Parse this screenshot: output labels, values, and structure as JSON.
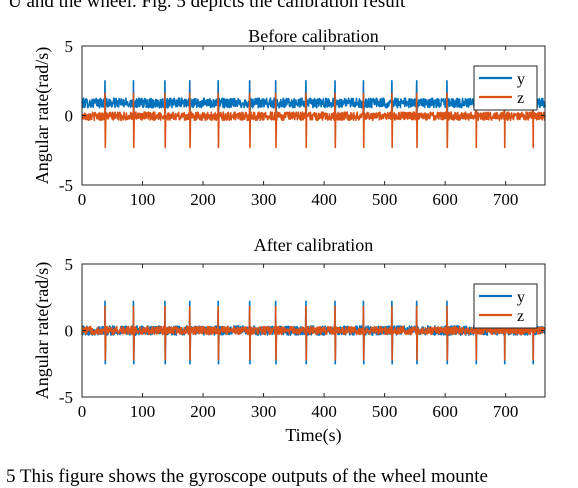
{
  "page_text": {
    "top": "U and the wheel. Fig. 5 depicts the calibration result",
    "bottom": "5 This figure shows the gyroscope outputs of the wheel mounte"
  },
  "colors": {
    "y": "#0072BD",
    "z": "#D95319"
  },
  "chart_data": [
    {
      "type": "line",
      "title": "Before calibration",
      "xlabel": "",
      "ylabel": "Angular rate(rad/s)",
      "xlim": [
        0,
        765
      ],
      "ylim": [
        -5,
        5
      ],
      "xticks": [
        "0",
        "100",
        "200",
        "300",
        "400",
        "500",
        "600",
        "700"
      ],
      "yticks": [
        "5",
        "0",
        "-5"
      ],
      "legend": {
        "placement": "top-right",
        "entries": [
          "y",
          "z"
        ]
      },
      "grid": false,
      "series": [
        {
          "name": "y",
          "baseline": 0.9,
          "noise_amplitude": 0.35,
          "spike_times": [
            38,
            85,
            137,
            178,
            225,
            277,
            320,
            370,
            418,
            465,
            512,
            553,
            603,
            651,
            698,
            745
          ],
          "spike_peak": 2.5,
          "spike_trough": 0.2
        },
        {
          "name": "z",
          "baseline": -0.05,
          "noise_amplitude": 0.3,
          "spike_times": [
            38,
            85,
            137,
            178,
            225,
            277,
            320,
            370,
            418,
            465,
            512,
            553,
            603,
            651,
            698,
            745
          ],
          "spike_peak": 1.6,
          "spike_trough": -2.3
        }
      ]
    },
    {
      "type": "line",
      "title": "After calibration",
      "xlabel": "Time(s)",
      "ylabel": "Angular rate(rad/s)",
      "xlim": [
        0,
        765
      ],
      "ylim": [
        -5,
        5
      ],
      "xticks": [
        "0",
        "100",
        "200",
        "300",
        "400",
        "500",
        "600",
        "700"
      ],
      "yticks": [
        "5",
        "0",
        "-5"
      ],
      "legend": {
        "placement": "top-right",
        "entries": [
          "y",
          "z"
        ]
      },
      "grid": false,
      "series": [
        {
          "name": "y",
          "baseline": 0.0,
          "noise_amplitude": 0.35,
          "spike_times": [
            38,
            85,
            137,
            178,
            225,
            277,
            320,
            370,
            418,
            465,
            512,
            553,
            603,
            651,
            698,
            745
          ],
          "spike_peak": 2.2,
          "spike_trough": -2.5
        },
        {
          "name": "z",
          "baseline": 0.0,
          "noise_amplitude": 0.3,
          "spike_times": [
            38,
            85,
            137,
            178,
            225,
            277,
            320,
            370,
            418,
            465,
            512,
            553,
            603,
            651,
            698,
            745
          ],
          "spike_peak": 1.8,
          "spike_trough": -2.2
        }
      ]
    }
  ]
}
